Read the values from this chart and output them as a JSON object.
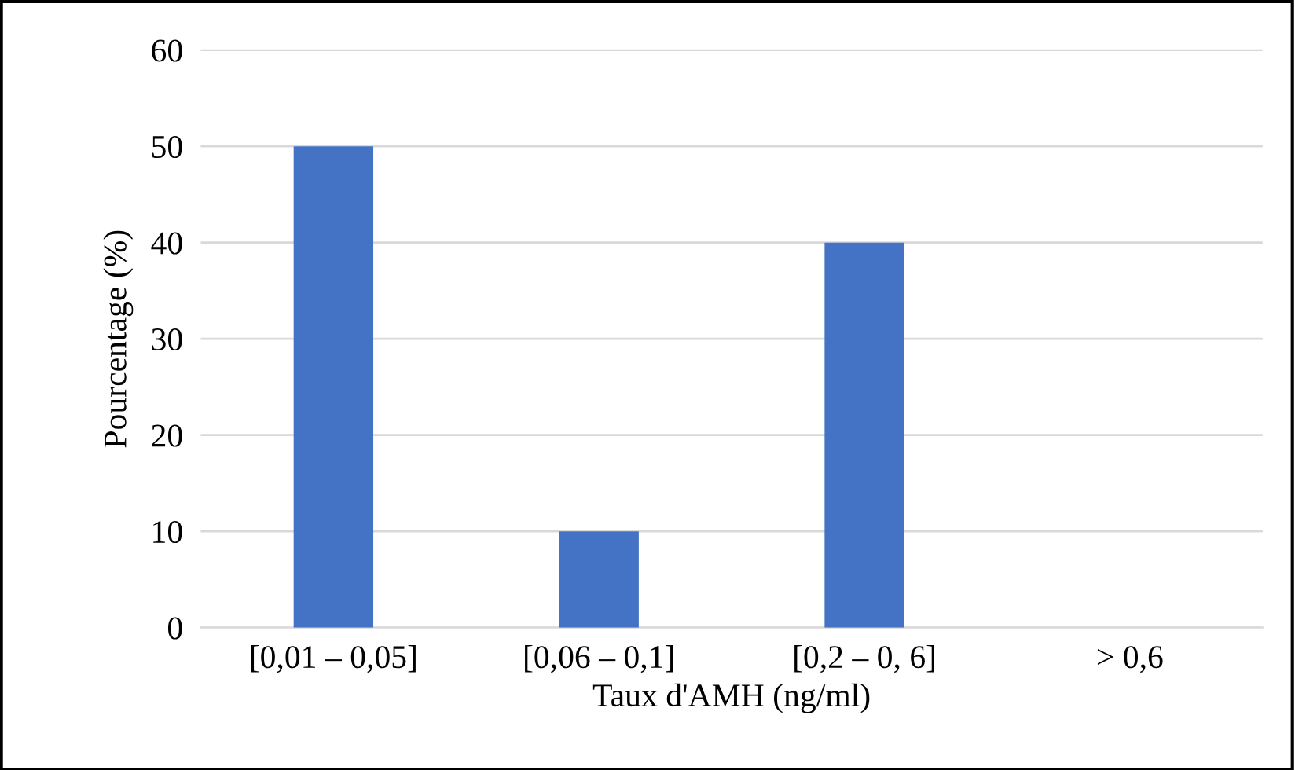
{
  "chart_data": {
    "type": "bar",
    "xlabel": "Taux d'AMH (ng/ml)",
    "ylabel": "Pourcentage (%)",
    "categories": [
      "[0,01 – 0,05]",
      "[0,06 – 0,1]",
      "[0,2 – 0, 6]",
      "> 0,6"
    ],
    "values": [
      50,
      10,
      40,
      0
    ],
    "color": "#4472c4",
    "ylim": [
      0,
      60
    ],
    "yticks": [
      0,
      10,
      20,
      30,
      40,
      50,
      60
    ],
    "grid": "y",
    "legend": false
  }
}
